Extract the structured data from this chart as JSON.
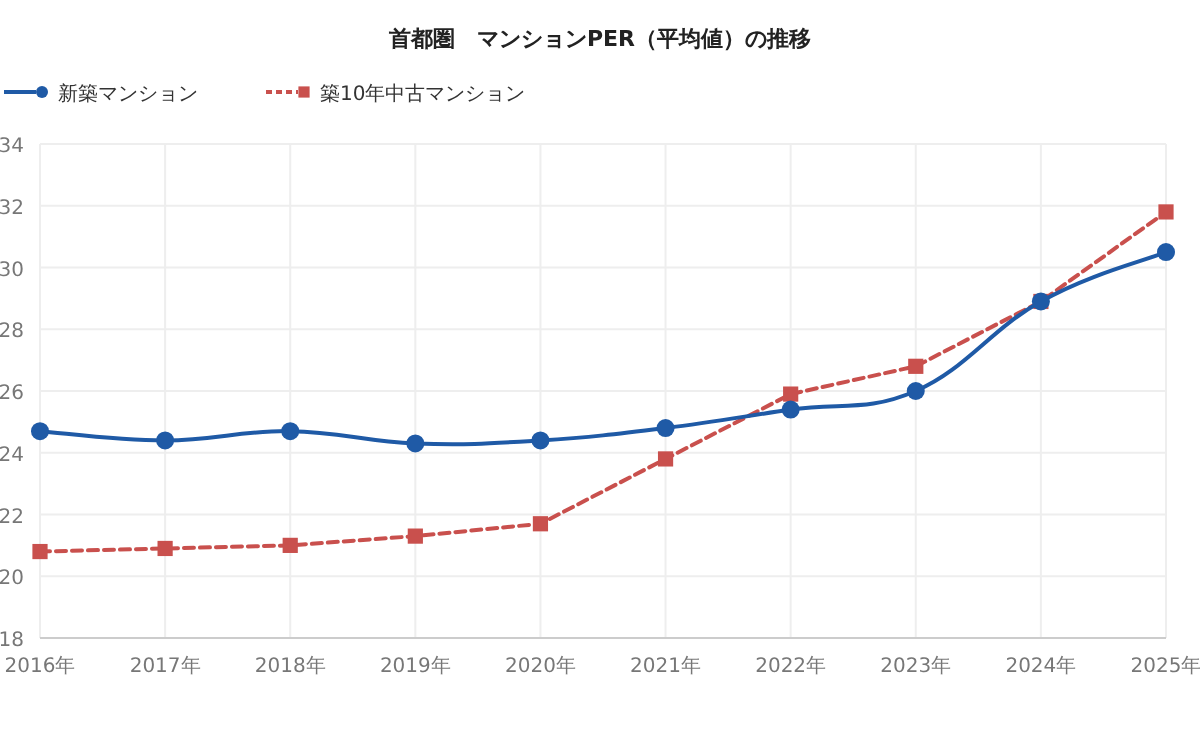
{
  "chart_data": {
    "type": "line",
    "title": "首都圏　マンションPER（平均値）の推移",
    "categories": [
      "2016年",
      "2017年",
      "2018年",
      "2019年",
      "2020年",
      "2021年",
      "2022年",
      "2023年",
      "2024年",
      "2025年"
    ],
    "series": [
      {
        "name": "新築マンション",
        "color": "#1f5aa6",
        "marker": "circle",
        "line_style": "solid",
        "values": [
          24.7,
          24.4,
          24.7,
          24.3,
          24.4,
          24.8,
          25.4,
          26.0,
          28.9,
          30.5
        ]
      },
      {
        "name": "築10年中古マンション",
        "color": "#c9504d",
        "marker": "square",
        "line_style": "dashed",
        "values": [
          20.8,
          20.9,
          21.0,
          21.3,
          21.7,
          23.8,
          25.9,
          26.8,
          28.9,
          31.8
        ]
      }
    ],
    "ylim": [
      18,
      34
    ],
    "yticks": [
      18,
      20,
      22,
      24,
      26,
      28,
      30,
      32,
      34
    ],
    "grid": true,
    "legend": "top left"
  }
}
